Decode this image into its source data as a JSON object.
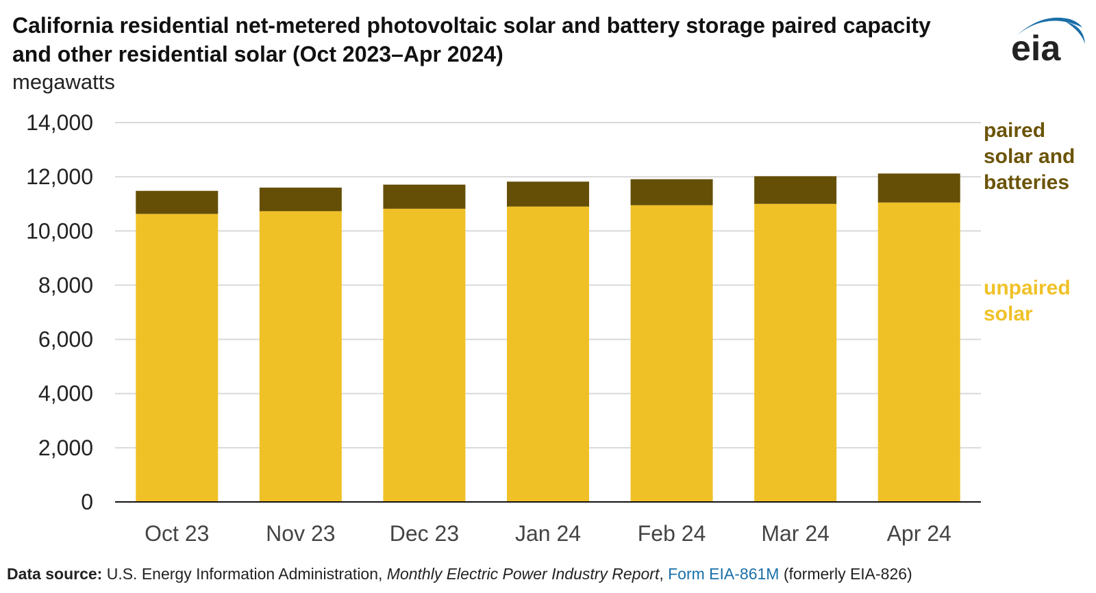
{
  "header": {
    "title": "California residential net-metered photovoltaic solar and battery storage paired capacity and other residential solar (Oct 2023–Apr 2024)",
    "units": "megawatts"
  },
  "logo": {
    "text": "eia",
    "icon": "eia-logo-arc-icon",
    "color": "#1a6fa8"
  },
  "chart_data": {
    "type": "bar",
    "stacked": true,
    "categories": [
      "Oct 23",
      "Nov 23",
      "Dec 23",
      "Jan 24",
      "Feb 24",
      "Mar 24",
      "Apr 24"
    ],
    "series": [
      {
        "name": "unpaired solar",
        "color": "#f0c127",
        "values": [
          10630,
          10730,
          10820,
          10900,
          10950,
          11000,
          11050
        ]
      },
      {
        "name": "paired solar and batteries",
        "color": "#654f07",
        "values": [
          850,
          870,
          890,
          920,
          960,
          1020,
          1070
        ]
      }
    ],
    "ylim": [
      0,
      14000
    ],
    "yticks": [
      0,
      2000,
      4000,
      6000,
      8000,
      10000,
      12000,
      14000
    ],
    "ytick_labels": [
      "0",
      "2,000",
      "4,000",
      "6,000",
      "8,000",
      "10,000",
      "12,000",
      "14,000"
    ],
    "grid": true,
    "legend": "right"
  },
  "legend_labels": {
    "paired": [
      "paired",
      "solar and",
      "batteries"
    ],
    "unpaired": [
      "unpaired",
      "solar"
    ]
  },
  "footer": {
    "source_label": "Data source:",
    "source_text": "U.S. Energy Information Administration,",
    "report_name": "Monthly Electric Power Industry Report",
    "comma": ",",
    "form_link": "Form EIA-861M",
    "form_note": "(formerly EIA-826)"
  }
}
